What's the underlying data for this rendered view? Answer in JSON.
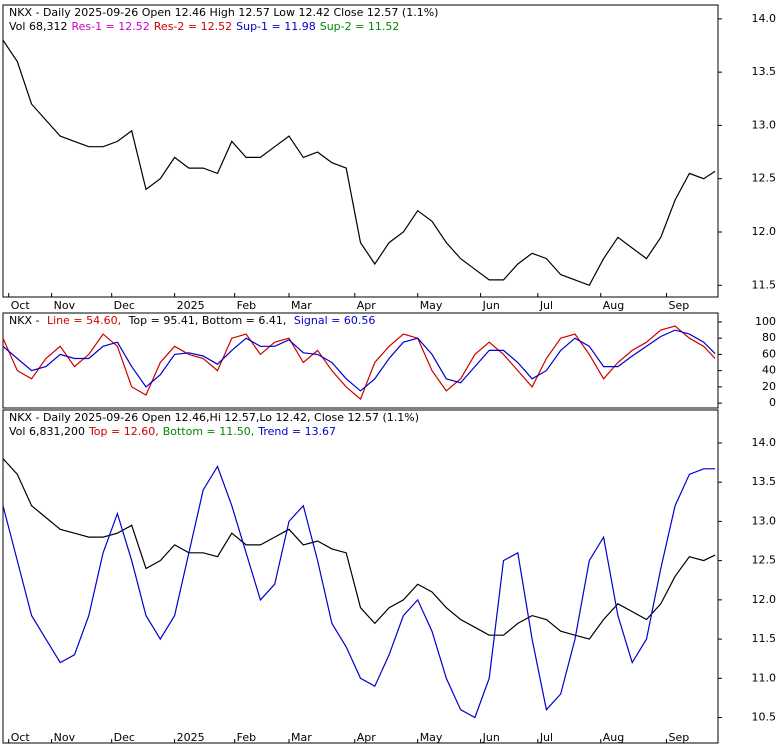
{
  "chart_data": [
    {
      "type": "line",
      "header": [
        [
          {
            "text": "NKX - Daily 2025-09-26 Open 12.46  High 12.57  Low 12.42  Close 12.57 (1.1%)",
            "color": "#000000"
          }
        ],
        [
          {
            "text": "Vol 68,312",
            "color": "#000000"
          },
          {
            "text": "Res-1 = 12.52",
            "color": "#cc00cc"
          },
          {
            "text": "Res-2 = 12.52",
            "color": "#cc0000"
          },
          {
            "text": "Sup-1 = 11.98",
            "color": "#0000cc"
          },
          {
            "text": "Sup-2 = 11.52",
            "color": "#008800"
          }
        ]
      ],
      "x": [
        0,
        5,
        10,
        15,
        20,
        25,
        30,
        35,
        40,
        45,
        50,
        55,
        60,
        65,
        70,
        75,
        80,
        85,
        90,
        95,
        100,
        105,
        110,
        115,
        120,
        125,
        130,
        135,
        140,
        145,
        150,
        155,
        160,
        165,
        170,
        175,
        180,
        185,
        190,
        195,
        200,
        205,
        210,
        215,
        220,
        225,
        230,
        235,
        240,
        245,
        249
      ],
      "series": [
        {
          "color": "#000000",
          "values": [
            13.8,
            13.6,
            13.2,
            13.05,
            12.9,
            12.85,
            12.8,
            12.8,
            12.85,
            12.95,
            12.4,
            12.5,
            12.7,
            12.6,
            12.6,
            12.55,
            12.85,
            12.7,
            12.7,
            12.8,
            12.9,
            12.7,
            12.75,
            12.65,
            12.6,
            11.9,
            11.7,
            11.9,
            12.0,
            12.2,
            12.1,
            11.9,
            11.75,
            11.65,
            11.55,
            11.55,
            11.7,
            11.8,
            11.75,
            11.6,
            11.55,
            11.5,
            11.75,
            11.95,
            11.85,
            11.75,
            11.95,
            12.3,
            12.55,
            12.5,
            12.57
          ]
        }
      ],
      "xlim": [
        0,
        250
      ],
      "xticks": [
        {
          "value": 2,
          "label": "Oct"
        },
        {
          "value": 17,
          "label": "Nov"
        },
        {
          "value": 38,
          "label": "Dec"
        },
        {
          "value": 60,
          "label": "2025"
        },
        {
          "value": 81,
          "label": "Feb"
        },
        {
          "value": 100,
          "label": "Mar"
        },
        {
          "value": 123,
          "label": "Apr"
        },
        {
          "value": 145,
          "label": "May"
        },
        {
          "value": 167,
          "label": "Jun"
        },
        {
          "value": 187,
          "label": "Jul"
        },
        {
          "value": 209,
          "label": "Aug"
        },
        {
          "value": 232,
          "label": "Sep"
        }
      ],
      "ylim": [
        11.39,
        14.13
      ],
      "yticks": [
        11.5,
        {
          "value": 12,
          "label": "12.0"
        },
        12.5,
        {
          "value": 13,
          "label": "13.0"
        },
        13.5,
        {
          "value": 14,
          "label": "14.0"
        }
      ]
    },
    {
      "type": "line",
      "header": [
        [
          {
            "text": "NKX - ",
            "color": "#000000"
          },
          {
            "text": "Line = 54.60,",
            "color": "#cc0000"
          },
          {
            "text": " Top = 95.41, Bottom = 6.41, ",
            "color": "#000000"
          },
          {
            "text": "Signal = 60.56",
            "color": "#0000cc"
          }
        ]
      ],
      "x": [
        0,
        5,
        10,
        15,
        20,
        25,
        30,
        35,
        40,
        45,
        50,
        55,
        60,
        65,
        70,
        75,
        80,
        85,
        90,
        95,
        100,
        105,
        110,
        115,
        120,
        125,
        130,
        135,
        140,
        145,
        150,
        155,
        160,
        165,
        170,
        175,
        180,
        185,
        190,
        195,
        200,
        205,
        210,
        215,
        220,
        225,
        230,
        235,
        240,
        245,
        249
      ],
      "series": [
        {
          "color": "#cc0000",
          "values": [
            80,
            40,
            30,
            55,
            70,
            45,
            60,
            85,
            70,
            20,
            10,
            50,
            70,
            60,
            55,
            40,
            80,
            85,
            60,
            75,
            80,
            50,
            65,
            40,
            20,
            5,
            50,
            70,
            85,
            80,
            40,
            15,
            30,
            60,
            75,
            60,
            40,
            20,
            55,
            80,
            85,
            60,
            30,
            50,
            65,
            75,
            90,
            95,
            80,
            70,
            55
          ]
        },
        {
          "color": "#0000cc",
          "values": [
            70,
            55,
            40,
            45,
            60,
            55,
            55,
            70,
            75,
            45,
            20,
            35,
            60,
            62,
            58,
            48,
            65,
            80,
            70,
            70,
            78,
            62,
            60,
            50,
            30,
            15,
            30,
            55,
            75,
            80,
            60,
            30,
            25,
            45,
            65,
            65,
            50,
            30,
            40,
            65,
            80,
            70,
            45,
            45,
            58,
            70,
            82,
            90,
            85,
            75,
            61
          ]
        }
      ],
      "xlim": [
        0,
        250
      ],
      "ylim": [
        -6,
        111
      ],
      "yticks": [
        0,
        20,
        40,
        60,
        80,
        100
      ]
    },
    {
      "type": "line",
      "header": [
        [
          {
            "text": "NKX - Daily 2025-09-26 Open 12.46,Hi 12.57,Lo 12.42, Close 12.57 (1.1%)",
            "color": "#000000"
          }
        ],
        [
          {
            "text": "Vol 6,831,200",
            "color": "#000000"
          },
          {
            "text": "Top = 12.60,",
            "color": "#cc0000"
          },
          {
            "text": "Bottom = 11.50,",
            "color": "#008800"
          },
          {
            "text": "Trend = 13.67",
            "color": "#0000cc"
          }
        ]
      ],
      "x": [
        0,
        5,
        10,
        15,
        20,
        25,
        30,
        35,
        40,
        45,
        50,
        55,
        60,
        65,
        70,
        75,
        80,
        85,
        90,
        95,
        100,
        105,
        110,
        115,
        120,
        125,
        130,
        135,
        140,
        145,
        150,
        155,
        160,
        165,
        170,
        175,
        180,
        185,
        190,
        195,
        200,
        205,
        210,
        215,
        220,
        225,
        230,
        235,
        240,
        245,
        249
      ],
      "series": [
        {
          "color": "#000000",
          "values": [
            13.8,
            13.6,
            13.2,
            13.05,
            12.9,
            12.85,
            12.8,
            12.8,
            12.85,
            12.95,
            12.4,
            12.5,
            12.7,
            12.6,
            12.6,
            12.55,
            12.85,
            12.7,
            12.7,
            12.8,
            12.9,
            12.7,
            12.75,
            12.65,
            12.6,
            11.9,
            11.7,
            11.9,
            12.0,
            12.2,
            12.1,
            11.9,
            11.75,
            11.65,
            11.55,
            11.55,
            11.7,
            11.8,
            11.75,
            11.6,
            11.55,
            11.5,
            11.75,
            11.95,
            11.85,
            11.75,
            11.95,
            12.3,
            12.55,
            12.5,
            12.57
          ]
        },
        {
          "color": "#0000cc",
          "values": [
            13.2,
            12.5,
            11.8,
            11.5,
            11.2,
            11.3,
            11.8,
            12.6,
            13.1,
            12.5,
            11.8,
            11.5,
            11.8,
            12.6,
            13.4,
            13.7,
            13.2,
            12.6,
            12.0,
            12.2,
            13.0,
            13.2,
            12.5,
            11.7,
            11.4,
            11.0,
            10.9,
            11.3,
            11.8,
            12.0,
            11.6,
            11.0,
            10.6,
            10.5,
            11.0,
            12.5,
            12.6,
            11.5,
            10.6,
            10.8,
            11.5,
            12.5,
            12.8,
            11.8,
            11.2,
            11.5,
            12.4,
            13.2,
            13.6,
            13.67,
            13.67
          ]
        }
      ],
      "xlim": [
        0,
        250
      ],
      "xticks": [
        {
          "value": 2,
          "label": "Oct"
        },
        {
          "value": 17,
          "label": "Nov"
        },
        {
          "value": 38,
          "label": "Dec"
        },
        {
          "value": 60,
          "label": "2025"
        },
        {
          "value": 81,
          "label": "Feb"
        },
        {
          "value": 100,
          "label": "Mar"
        },
        {
          "value": 123,
          "label": "Apr"
        },
        {
          "value": 145,
          "label": "May"
        },
        {
          "value": 167,
          "label": "Jun"
        },
        {
          "value": 187,
          "label": "Jul"
        },
        {
          "value": 209,
          "label": "Aug"
        },
        {
          "value": 232,
          "label": "Sep"
        }
      ],
      "ylim": [
        10.15,
        14.42
      ],
      "yticks": [
        10.5,
        {
          "value": 11,
          "label": "11.0"
        },
        11.5,
        {
          "value": 12,
          "label": "12.0"
        },
        12.5,
        {
          "value": 13,
          "label": "13.0"
        },
        13.5,
        {
          "value": 14,
          "label": "14.0"
        }
      ]
    }
  ]
}
